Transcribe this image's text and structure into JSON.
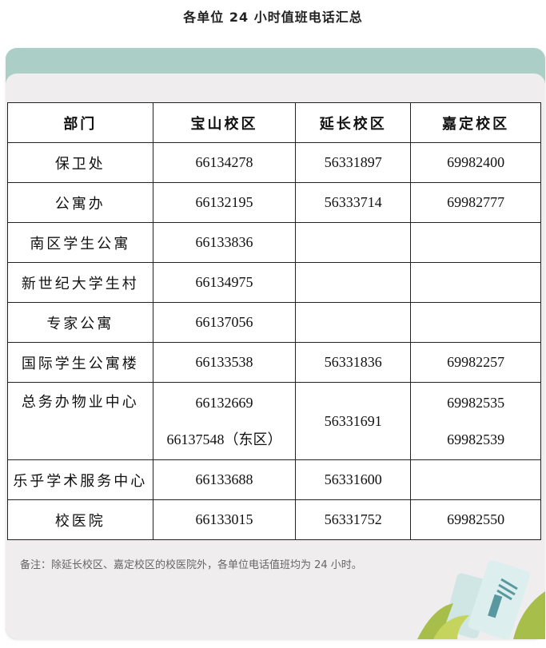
{
  "title": "各单位 24 小时值班电话汇总",
  "table": {
    "headers": [
      "部门",
      "宝山校区",
      "延长校区",
      "嘉定校区"
    ],
    "rows": [
      {
        "dept": "保卫处",
        "baoshan": [
          "66134278"
        ],
        "yanchang": "56331897",
        "jiading": [
          "69982400"
        ]
      },
      {
        "dept": "公寓办",
        "baoshan": [
          "66132195"
        ],
        "yanchang": "56333714",
        "jiading": [
          "69982777"
        ]
      },
      {
        "dept": "南区学生公寓",
        "baoshan": [
          "66133836"
        ],
        "yanchang": "",
        "jiading": []
      },
      {
        "dept": "新世纪大学生村",
        "baoshan": [
          "66134975"
        ],
        "yanchang": "",
        "jiading": []
      },
      {
        "dept": "专家公寓",
        "baoshan": [
          "66137056"
        ],
        "yanchang": "",
        "jiading": []
      },
      {
        "dept": "国际学生公寓楼",
        "baoshan": [
          "66133538"
        ],
        "yanchang": "56331836",
        "jiading": [
          "69982257"
        ]
      },
      {
        "dept": "总务办物业中心",
        "baoshan": [
          "66132669",
          "66137548（东区）"
        ],
        "yanchang": "56331691",
        "jiading": [
          "69982535",
          "69982539"
        ]
      },
      {
        "dept": "乐乎学术服务中心",
        "baoshan": [
          "66133688"
        ],
        "yanchang": "56331600",
        "jiading": []
      },
      {
        "dept": "校医院",
        "baoshan": [
          "66133015"
        ],
        "yanchang": "56331752",
        "jiading": [
          "69982550"
        ]
      }
    ]
  },
  "note": "备注：除延长校区、嘉定校区的校医院外，各单位电话值班均为 24 小时。",
  "colors": {
    "header_band": "#abcfc6",
    "panel": "#efedee"
  },
  "decoration_icon": "documents-and-leaves-illustration"
}
